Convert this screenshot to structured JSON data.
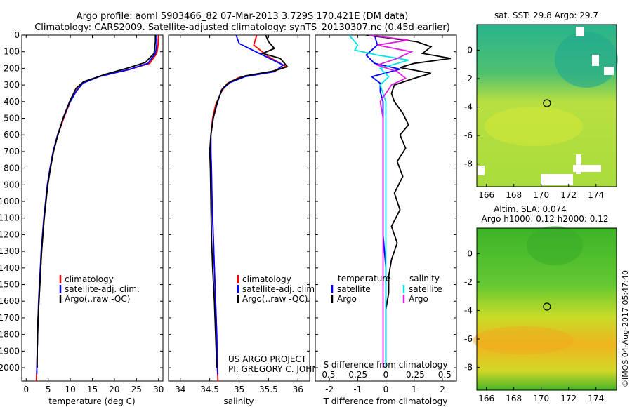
{
  "header": {
    "title_line1": "Argo profile: aoml 5903466_82 07-Mar-2013 3.729S 170.421E (DM data)",
    "title_line2": "Climatology: CARS2009. Satellite-adjusted climatology: synTS_20130307.nc (0.45d earlier)"
  },
  "watermark": "©IMOS 04-Aug-2017 05:47:40",
  "colors": {
    "climatology": "#ff0000",
    "satellite": "#0000ff",
    "argo": "#000000",
    "temp_diff_satellite": "#0000ff",
    "sal_diff_satellite": "#00e5e5",
    "sal_diff_argo": "#e020e0",
    "sst_map_warm": "#c8e63c",
    "sst_map_cool": "#28b48c",
    "sla_map_high": "#f0b41e",
    "sla_map_low": "#3cb428"
  },
  "chart_data": [
    {
      "type": "line",
      "panel": "temperature",
      "xlabel": "temperature (deg C)",
      "xlim": [
        -1,
        31
      ],
      "xticks": [
        0,
        5,
        10,
        15,
        20,
        25,
        30
      ],
      "ylim": [
        2080,
        0
      ],
      "yticks": [
        0,
        100,
        200,
        300,
        400,
        500,
        600,
        700,
        800,
        900,
        1000,
        1100,
        1200,
        1300,
        1400,
        1500,
        1600,
        1700,
        1800,
        1900,
        2000
      ],
      "legend": [
        "climatology",
        "satellite-adj. clim.",
        "Argo(..raw -QC)"
      ],
      "series": [
        {
          "name": "climatology",
          "color": "#ff0000",
          "points": [
            [
              30,
              0
            ],
            [
              29.9,
              60
            ],
            [
              29.6,
              110
            ],
            [
              28,
              170
            ],
            [
              23,
              210
            ],
            [
              17,
              245
            ],
            [
              13,
              285
            ],
            [
              11.5,
              330
            ],
            [
              10,
              400
            ],
            [
              8.5,
              500
            ],
            [
              7.2,
              600
            ],
            [
              6.2,
              700
            ],
            [
              5.5,
              800
            ],
            [
              4.9,
              900
            ],
            [
              4.5,
              1000
            ],
            [
              4.1,
              1100
            ],
            [
              3.8,
              1200
            ],
            [
              3.5,
              1300
            ],
            [
              3.3,
              1400
            ],
            [
              3.1,
              1500
            ],
            [
              2.9,
              1600
            ],
            [
              2.7,
              1700
            ],
            [
              2.6,
              1800
            ],
            [
              2.5,
              1900
            ],
            [
              2.4,
              2000
            ],
            [
              2.3,
              2080
            ]
          ]
        },
        {
          "name": "satellite-adj. clim.",
          "color": "#0000ff",
          "points": [
            [
              29.6,
              0
            ],
            [
              29.6,
              60
            ],
            [
              29.3,
              110
            ],
            [
              27.6,
              170
            ],
            [
              23.5,
              205
            ],
            [
              16.5,
              250
            ],
            [
              12.8,
              290
            ],
            [
              11.3,
              340
            ],
            [
              9.8,
              410
            ],
            [
              8.4,
              500
            ],
            [
              7.1,
              600
            ],
            [
              6.1,
              700
            ],
            [
              5.4,
              800
            ],
            [
              4.8,
              900
            ],
            [
              4.4,
              1000
            ],
            [
              4.0,
              1100
            ],
            [
              3.7,
              1200
            ],
            [
              3.4,
              1300
            ],
            [
              3.2,
              1400
            ],
            [
              3.0,
              1500
            ],
            [
              2.8,
              1600
            ],
            [
              2.7,
              1700
            ],
            [
              2.6,
              1800
            ],
            [
              2.5,
              1900
            ],
            [
              2.4,
              2000
            ],
            [
              2.4,
              2040
            ]
          ]
        },
        {
          "name": "Argo(..raw -QC)",
          "color": "#000000",
          "points": [
            [
              29.3,
              0
            ],
            [
              29.3,
              40
            ],
            [
              29.0,
              110
            ],
            [
              27.0,
              165
            ],
            [
              22.8,
              200
            ],
            [
              18,
              235
            ],
            [
              13,
              280
            ],
            [
              11.3,
              320
            ],
            [
              10,
              390
            ],
            [
              8.5,
              490
            ],
            [
              7.2,
              600
            ],
            [
              6.2,
              700
            ],
            [
              5.5,
              800
            ],
            [
              4.9,
              900
            ],
            [
              4.5,
              1000
            ],
            [
              4.1,
              1100
            ],
            [
              3.8,
              1200
            ],
            [
              3.5,
              1300
            ],
            [
              3.3,
              1400
            ],
            [
              3.1,
              1500
            ],
            [
              2.9,
              1600
            ],
            [
              2.7,
              1700
            ],
            [
              2.6,
              1800
            ],
            [
              2.5,
              1900
            ],
            [
              2.5,
              2000
            ]
          ]
        }
      ]
    },
    {
      "type": "line",
      "panel": "salinity",
      "xlabel": "salinity",
      "xlim": [
        33.8,
        36.2
      ],
      "xticks": [
        34,
        34.5,
        35,
        35.5,
        36
      ],
      "xtick_labels": [
        "34",
        "34.5",
        "35",
        "35.5",
        "36"
      ],
      "ylim": [
        2080,
        0
      ],
      "legend": [
        "climatology",
        "satellite-adj. clim.",
        "Argo(..raw -QC)"
      ],
      "annotation": [
        "US ARGO PROJECT",
        "PI: GREGORY C. JOHNSON"
      ],
      "series": [
        {
          "name": "climatology",
          "color": "#ff0000",
          "points": [
            [
              35.3,
              0
            ],
            [
              35.25,
              60
            ],
            [
              35.5,
              130
            ],
            [
              35.8,
              190
            ],
            [
              35.5,
              225
            ],
            [
              35.0,
              255
            ],
            [
              34.8,
              290
            ],
            [
              34.7,
              340
            ],
            [
              34.6,
              420
            ],
            [
              34.55,
              500
            ],
            [
              34.52,
              600
            ],
            [
              34.52,
              700
            ],
            [
              34.53,
              800
            ],
            [
              34.54,
              1000
            ],
            [
              34.56,
              1200
            ],
            [
              34.58,
              1400
            ],
            [
              34.6,
              1600
            ],
            [
              34.62,
              1800
            ],
            [
              34.63,
              2000
            ],
            [
              34.64,
              2080
            ]
          ]
        },
        {
          "name": "satellite-adj. clim.",
          "color": "#0000ff",
          "points": [
            [
              34.95,
              0
            ],
            [
              35.0,
              50
            ],
            [
              35.4,
              120
            ],
            [
              35.75,
              180
            ],
            [
              35.6,
              220
            ],
            [
              35.1,
              250
            ],
            [
              34.85,
              285
            ],
            [
              34.7,
              330
            ],
            [
              34.62,
              420
            ],
            [
              34.56,
              500
            ],
            [
              34.52,
              600
            ],
            [
              34.52,
              700
            ],
            [
              34.53,
              800
            ],
            [
              34.54,
              1000
            ],
            [
              34.56,
              1200
            ],
            [
              34.58,
              1400
            ],
            [
              34.6,
              1600
            ],
            [
              34.62,
              1800
            ],
            [
              34.63,
              2000
            ],
            [
              34.64,
              2040
            ]
          ]
        },
        {
          "name": "Argo(..raw -QC)",
          "color": "#000000",
          "points": [
            [
              35.45,
              0
            ],
            [
              35.5,
              40
            ],
            [
              35.6,
              80
            ],
            [
              35.4,
              110
            ],
            [
              35.7,
              140
            ],
            [
              35.82,
              190
            ],
            [
              35.6,
              215
            ],
            [
              35.1,
              245
            ],
            [
              34.85,
              280
            ],
            [
              34.72,
              320
            ],
            [
              34.63,
              400
            ],
            [
              34.56,
              500
            ],
            [
              34.52,
              600
            ],
            [
              34.5,
              700
            ],
            [
              34.51,
              800
            ],
            [
              34.52,
              1000
            ],
            [
              34.53,
              1200
            ],
            [
              34.55,
              1400
            ],
            [
              34.58,
              1600
            ],
            [
              34.6,
              1800
            ],
            [
              34.62,
              2000
            ]
          ]
        }
      ]
    },
    {
      "type": "line",
      "panel": "difference",
      "xlabel": "T difference from climatology",
      "xlabel_top": "S difference from climatology",
      "xlim": [
        -2.5,
        2.5
      ],
      "xticks": [
        -2,
        -1,
        0,
        1,
        2
      ],
      "xticks_top": [
        -0.5,
        -0.25,
        0,
        0.25,
        0.5
      ],
      "xtick_top_labels": [
        "-0.5",
        "-0.25",
        "0",
        "0.25",
        "0.5"
      ],
      "ylim": [
        2080,
        0
      ],
      "legend_temperature": {
        "title": "temperature",
        "entries": [
          "satellite",
          "Argo"
        ]
      },
      "legend_salinity": {
        "title": "salinity",
        "entries": [
          "satellite",
          "Argo"
        ]
      },
      "series": [
        {
          "name": "temperature satellite",
          "color": "#0000ff",
          "points": [
            [
              -0.4,
              0
            ],
            [
              -0.3,
              60
            ],
            [
              -0.7,
              120
            ],
            [
              -0.4,
              170
            ],
            [
              0.5,
              205
            ],
            [
              -0.5,
              250
            ],
            [
              -0.2,
              290
            ],
            [
              -0.2,
              340
            ],
            [
              -0.1,
              400
            ],
            [
              -0.1,
              500
            ],
            [
              -0.1,
              600
            ],
            [
              -0.1,
              700
            ],
            [
              -0.1,
              800
            ],
            [
              -0.1,
              1000
            ],
            [
              -0.1,
              1200
            ],
            [
              0,
              1400
            ],
            [
              0,
              1600
            ],
            [
              0,
              1800
            ],
            [
              0,
              2000
            ]
          ]
        },
        {
          "name": "temperature Argo",
          "color": "#000000",
          "points": [
            [
              -0.7,
              0
            ],
            [
              1.1,
              40
            ],
            [
              1.6,
              70
            ],
            [
              1.3,
              110
            ],
            [
              2.3,
              140
            ],
            [
              1.0,
              170
            ],
            [
              0.5,
              195
            ],
            [
              1.6,
              230
            ],
            [
              1.0,
              260
            ],
            [
              0.3,
              300
            ],
            [
              0.2,
              350
            ],
            [
              0.3,
              400
            ],
            [
              0.6,
              470
            ],
            [
              0.8,
              540
            ],
            [
              0.5,
              600
            ],
            [
              0.7,
              680
            ],
            [
              0.4,
              760
            ],
            [
              0.6,
              850
            ],
            [
              0.3,
              950
            ],
            [
              0.5,
              1050
            ],
            [
              0.2,
              1150
            ],
            [
              0.4,
              1250
            ],
            [
              0.2,
              1350
            ],
            [
              0.1,
              1450
            ],
            [
              0.1,
              1550
            ],
            [
              0,
              1650
            ],
            [
              0,
              1800
            ],
            [
              0,
              2000
            ]
          ]
        },
        {
          "name": "salinity satellite",
          "color": "#00e5e5",
          "points": [
            [
              -1.3,
              0
            ],
            [
              -1.0,
              60
            ],
            [
              -1.1,
              90
            ],
            [
              -0.3,
              120
            ],
            [
              0.8,
              150
            ],
            [
              -0.2,
              200
            ],
            [
              0.1,
              250
            ],
            [
              -0.2,
              300
            ],
            [
              -0.1,
              350
            ],
            [
              0,
              400
            ],
            [
              0,
              600
            ],
            [
              0,
              800
            ],
            [
              0,
              1000
            ],
            [
              0,
              1200
            ],
            [
              0,
              1400
            ],
            [
              0,
              1600
            ],
            [
              0,
              1800
            ],
            [
              0,
              2000
            ]
          ]
        },
        {
          "name": "salinity Argo",
          "color": "#e020e0",
          "points": [
            [
              -0.6,
              0
            ],
            [
              0.8,
              30
            ],
            [
              -0.3,
              60
            ],
            [
              0.9,
              100
            ],
            [
              0.4,
              140
            ],
            [
              -0.3,
              180
            ],
            [
              0.4,
              220
            ],
            [
              0.7,
              260
            ],
            [
              0.2,
              300
            ],
            [
              0,
              350
            ],
            [
              -0.2,
              400
            ],
            [
              -0.1,
              500
            ],
            [
              -0.1,
              700
            ],
            [
              -0.1,
              900
            ],
            [
              -0.1,
              1100
            ],
            [
              -0.1,
              1300
            ],
            [
              -0.1,
              1500
            ],
            [
              -0.1,
              1700
            ],
            [
              -0.1,
              1900
            ],
            [
              -0.1,
              2000
            ]
          ]
        }
      ]
    },
    {
      "type": "heatmap",
      "panel": "sst_map",
      "title": "sat. SST: 29.8  Argo: 29.7",
      "xlim": [
        165.3,
        175.5
      ],
      "ylim": [
        -9.6,
        1.8
      ],
      "xticks": [
        166,
        168,
        170,
        172,
        174
      ],
      "yticks": [
        0,
        -2,
        -4,
        -6,
        -8
      ],
      "marker": [
        170.421,
        -3.729
      ]
    },
    {
      "type": "heatmap",
      "panel": "sla_map",
      "title_line1": "Altim. SLA: 0.074",
      "title_line2": "Argo h1000: 0.12  h2000: 0.12",
      "xlim": [
        165.3,
        175.5
      ],
      "ylim": [
        -9.6,
        1.8
      ],
      "xticks": [
        166,
        168,
        170,
        172,
        174
      ],
      "yticks": [
        0,
        -2,
        -4,
        -6,
        -8
      ],
      "marker": [
        170.421,
        -3.729
      ]
    }
  ]
}
